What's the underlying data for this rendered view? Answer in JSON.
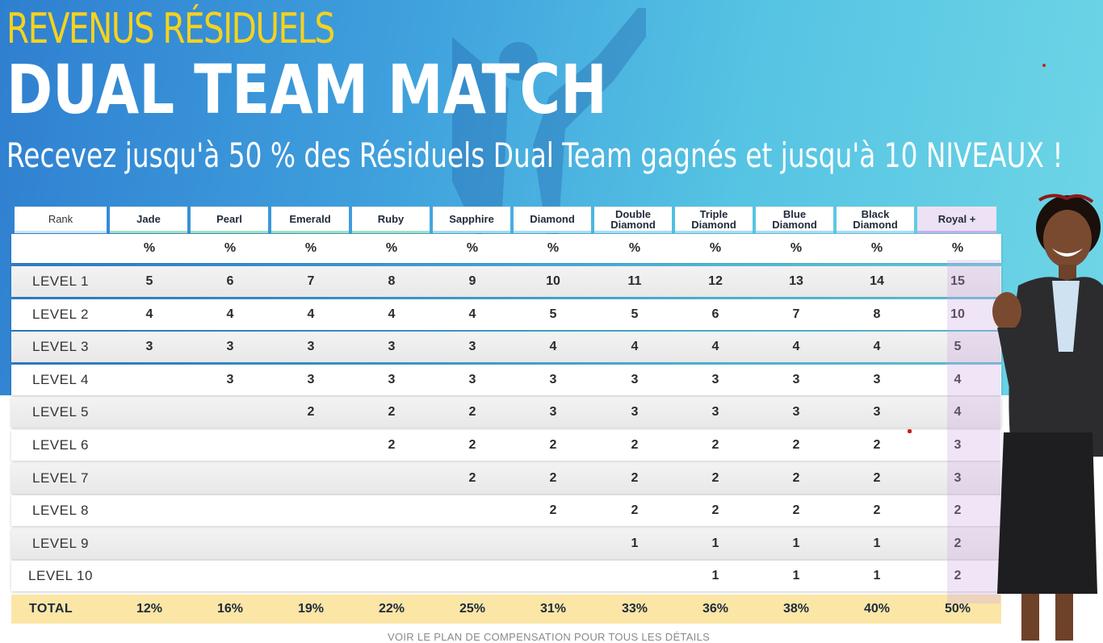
{
  "hero": {
    "title_small": "REVENUS RÉSIDUELS",
    "title_large": "DUAL TEAM MATCH",
    "subtitle": "Recevez jusqu'à 50 % des Résiduels Dual Team gagnés et jusqu'à 10 NIVEAUX !"
  },
  "table": {
    "rank_label": "Rank",
    "ranks": [
      "Jade",
      "Pearl",
      "Emerald",
      "Ruby",
      "Sapphire",
      "Diamond",
      "Double Diamond",
      "Triple Diamond",
      "Blue Diamond",
      "Black Diamond",
      "Royal +"
    ],
    "percent_symbol": "%",
    "rows": [
      {
        "label": "LEVEL 1",
        "values": [
          "5",
          "6",
          "7",
          "8",
          "9",
          "10",
          "11",
          "12",
          "13",
          "14",
          "15"
        ]
      },
      {
        "label": "LEVEL 2",
        "values": [
          "4",
          "4",
          "4",
          "4",
          "4",
          "5",
          "5",
          "6",
          "7",
          "8",
          "10"
        ]
      },
      {
        "label": "LEVEL 3",
        "values": [
          "3",
          "3",
          "3",
          "3",
          "3",
          "4",
          "4",
          "4",
          "4",
          "4",
          "5"
        ]
      },
      {
        "label": "LEVEL 4",
        "values": [
          "",
          "3",
          "3",
          "3",
          "3",
          "3",
          "3",
          "3",
          "3",
          "3",
          "4"
        ]
      },
      {
        "label": "LEVEL 5",
        "values": [
          "",
          "",
          "2",
          "2",
          "2",
          "3",
          "3",
          "3",
          "3",
          "3",
          "4"
        ]
      },
      {
        "label": "LEVEL 6",
        "values": [
          "",
          "",
          "",
          "2",
          "2",
          "2",
          "2",
          "2",
          "2",
          "2",
          "3"
        ]
      },
      {
        "label": "LEVEL 7",
        "values": [
          "",
          "",
          "",
          "",
          "2",
          "2",
          "2",
          "2",
          "2",
          "2",
          "3"
        ]
      },
      {
        "label": "LEVEL 8",
        "values": [
          "",
          "",
          "",
          "",
          "",
          "2",
          "2",
          "2",
          "2",
          "2",
          "2"
        ]
      },
      {
        "label": "LEVEL 9",
        "values": [
          "",
          "",
          "",
          "",
          "",
          "",
          "1",
          "1",
          "1",
          "1",
          "2"
        ]
      },
      {
        "label": "LEVEL 10",
        "values": [
          "",
          "",
          "",
          "",
          "",
          "",
          "",
          "1",
          "1",
          "1",
          "2"
        ]
      }
    ],
    "total": {
      "label": "TOTAL",
      "values": [
        "12%",
        "16%",
        "19%",
        "22%",
        "25%",
        "31%",
        "33%",
        "36%",
        "38%",
        "40%",
        "50%"
      ]
    }
  },
  "footer": {
    "note": "VOIR LE PLAN DE COMPENSATION POUR TOUS LES DÉTAILS"
  },
  "colors": {
    "accent_yellow": "#f5d21e",
    "total_row": "#fbe6a6",
    "royal_highlight": "#ece1f5"
  }
}
